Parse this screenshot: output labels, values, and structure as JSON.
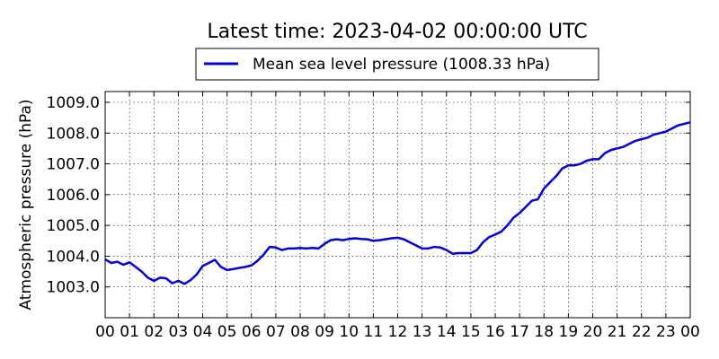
{
  "chart_data": {
    "type": "line",
    "title": "Latest time: 2023-04-02 00:00:00 UTC",
    "xlabel": "",
    "ylabel": "Atmospheric pressure (hPa)",
    "x_range": [
      0,
      24
    ],
    "ylim": [
      1002.0,
      1009.35
    ],
    "x_tick_labels": [
      "00",
      "01",
      "02",
      "03",
      "04",
      "05",
      "06",
      "07",
      "08",
      "09",
      "10",
      "11",
      "12",
      "13",
      "14",
      "15",
      "16",
      "17",
      "18",
      "19",
      "20",
      "21",
      "22",
      "23",
      "00"
    ],
    "y_ticks": [
      1003.0,
      1004.0,
      1005.0,
      1006.0,
      1007.0,
      1008.0,
      1009.0
    ],
    "y_tick_labels": [
      "1003.0",
      "1004.0",
      "1005.0",
      "1006.0",
      "1007.0",
      "1008.0",
      "1009.0"
    ],
    "grid": true,
    "legend_position": "top-center",
    "series": [
      {
        "name": "Mean sea level pressure (1008.33 hPa)",
        "color": "#0000dd",
        "x": [
          0,
          0.25,
          0.5,
          0.75,
          1.0,
          1.25,
          1.5,
          1.75,
          2.0,
          2.25,
          2.5,
          2.75,
          3.0,
          3.25,
          3.5,
          3.75,
          4.0,
          4.25,
          4.5,
          4.75,
          5.0,
          5.25,
          5.5,
          5.75,
          6.0,
          6.25,
          6.5,
          6.75,
          7.0,
          7.25,
          7.5,
          7.75,
          8.0,
          8.25,
          8.5,
          8.75,
          9.0,
          9.25,
          9.5,
          9.75,
          10.0,
          10.25,
          10.5,
          10.75,
          11.0,
          11.25,
          11.5,
          11.75,
          12.0,
          12.25,
          12.5,
          12.75,
          13.0,
          13.25,
          13.5,
          13.75,
          14.0,
          14.25,
          14.5,
          14.75,
          15.0,
          15.25,
          15.5,
          15.75,
          16.0,
          16.25,
          16.5,
          16.75,
          17.0,
          17.25,
          17.5,
          17.75,
          18.0,
          18.25,
          18.5,
          18.75,
          19.0,
          19.25,
          19.5,
          19.75,
          20.0,
          20.25,
          20.5,
          20.75,
          21.0,
          21.25,
          21.5,
          21.75,
          22.0,
          22.25,
          22.5,
          22.75,
          23.0,
          23.25,
          23.5,
          23.75,
          24.0
        ],
        "y": [
          1003.9,
          1003.78,
          1003.82,
          1003.72,
          1003.8,
          1003.65,
          1003.5,
          1003.3,
          1003.2,
          1003.3,
          1003.28,
          1003.12,
          1003.2,
          1003.1,
          1003.22,
          1003.4,
          1003.68,
          1003.78,
          1003.88,
          1003.65,
          1003.55,
          1003.58,
          1003.62,
          1003.65,
          1003.7,
          1003.85,
          1004.05,
          1004.3,
          1004.28,
          1004.2,
          1004.25,
          1004.25,
          1004.27,
          1004.25,
          1004.27,
          1004.25,
          1004.4,
          1004.52,
          1004.55,
          1004.52,
          1004.56,
          1004.58,
          1004.56,
          1004.55,
          1004.5,
          1004.52,
          1004.55,
          1004.58,
          1004.6,
          1004.55,
          1004.45,
          1004.35,
          1004.25,
          1004.25,
          1004.3,
          1004.28,
          1004.2,
          1004.08,
          1004.1,
          1004.1,
          1004.1,
          1004.2,
          1004.45,
          1004.62,
          1004.7,
          1004.8,
          1005.0,
          1005.25,
          1005.4,
          1005.6,
          1005.8,
          1005.85,
          1006.2,
          1006.4,
          1006.6,
          1006.85,
          1006.95,
          1006.95,
          1007.0,
          1007.1,
          1007.15,
          1007.15,
          1007.35,
          1007.45,
          1007.5,
          1007.55,
          1007.65,
          1007.75,
          1007.8,
          1007.85,
          1007.95,
          1008.0,
          1008.05,
          1008.15,
          1008.25,
          1008.3,
          1008.35
        ]
      }
    ]
  }
}
